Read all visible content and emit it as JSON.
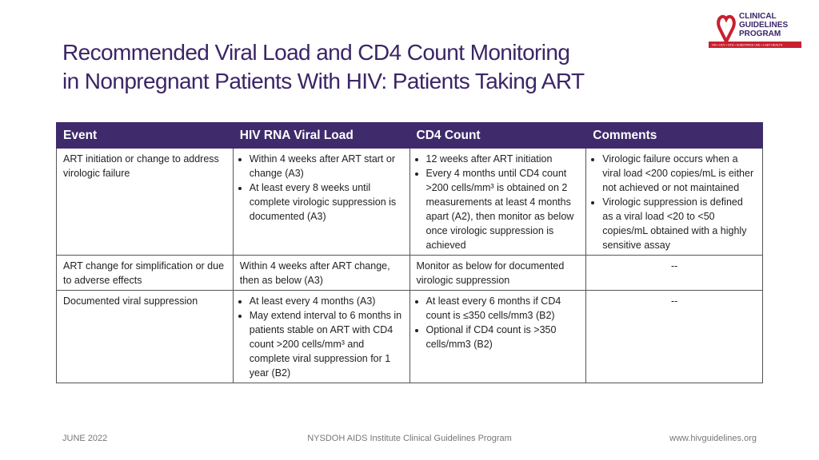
{
  "logo": {
    "lines": [
      "CLINICAL",
      "GUIDELINES",
      "PROGRAM"
    ],
    "tagline": "HIV • HCV • STIs • SUBSTANCE USE • LGBT HEALTH"
  },
  "title": [
    "Recommended Viral Load and CD4 Count Monitoring",
    "in Nonpregnant Patients With HIV: Patients Taking ART"
  ],
  "table": {
    "header": [
      "Event",
      "HIV RNA Viral Load",
      "CD4 Count",
      "Comments"
    ],
    "rows": [
      [
        "ART initiation or change to address virologic failure",
        [
          "Within 4 weeks after ART start or change (A3)",
          "At least every 8 weeks until complete virologic suppression is documented (A3)"
        ],
        [
          "12 weeks after ART initiation",
          "Every 4 months until CD4 count >200 cells/mm³ is obtained on 2 measurements at least 4 months apart (A2), then monitor as below once virologic suppression is achieved"
        ],
        [
          "Virologic failure occurs when a viral load <200 copies/mL is either not achieved or not maintained",
          "Virologic suppression is defined as a viral load <20 to <50 copies/mL obtained with a highly sensitive assay"
        ]
      ],
      [
        "ART change for simplification or due to adverse effects",
        "Within 4 weeks after ART change, then as below (A3)",
        "Monitor as below for documented virologic suppression",
        "--"
      ],
      [
        "Documented viral suppression",
        [
          "At least every 4 months (A3)",
          "May extend interval to 6 months in patients stable on ART with CD4 count >200 cells/mm³ and complete viral suppression for 1 year (B2)"
        ],
        [
          "At least every 6 months if CD4 count is ≤350 cells/mm3 (B2)",
          "Optional if CD4 count is >350 cells/mm3 (B2)"
        ],
        "--"
      ]
    ]
  },
  "footer": {
    "date": "JUNE 2022",
    "center": "NYSDOH AIDS Institute Clinical Guidelines Program",
    "url": "www.hivguidelines.org"
  }
}
